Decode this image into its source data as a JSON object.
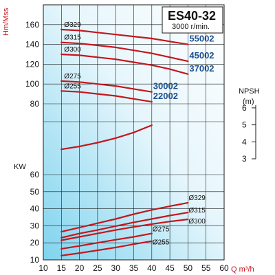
{
  "chart_data": {
    "type": "line",
    "title": "ES40-32",
    "subtitle": "3000 r/min.",
    "xlabel": "Q m³/h",
    "x_ticks": [
      10,
      15,
      20,
      25,
      30,
      35,
      40,
      45,
      50,
      55,
      60
    ],
    "xlim": [
      10,
      60
    ],
    "head": {
      "ylabel": "Hm/Mss",
      "y_ticks": [
        80,
        100,
        120,
        140,
        160
      ],
      "ylim": [
        80,
        168
      ],
      "curves": [
        {
          "diameter": "Ø329",
          "model": "55002",
          "x": [
            15,
            20,
            25,
            30,
            35,
            40,
            45,
            50
          ],
          "y": [
            155,
            154,
            152,
            150,
            148,
            146,
            143,
            140
          ]
        },
        {
          "diameter": "Ø315",
          "model": "45002",
          "x": [
            15,
            20,
            25,
            30,
            35,
            40,
            45,
            50
          ],
          "y": [
            142,
            141,
            139,
            137,
            134,
            131,
            127,
            123
          ]
        },
        {
          "diameter": "Ø300",
          "model": "37002",
          "x": [
            15,
            20,
            25,
            30,
            35,
            40,
            45,
            50
          ],
          "y": [
            130,
            129,
            127,
            125,
            122,
            119,
            115,
            110
          ]
        },
        {
          "diameter": "Ø275",
          "model": "30002",
          "x": [
            15,
            20,
            25,
            30,
            35,
            40
          ],
          "y": [
            103,
            102,
            100,
            98,
            95,
            92
          ]
        },
        {
          "diameter": "Ø255",
          "model": "22002",
          "x": [
            15,
            20,
            25,
            30,
            35,
            40
          ],
          "y": [
            93,
            92,
            90,
            88,
            85,
            82
          ]
        }
      ]
    },
    "npsh": {
      "ylabel": "NPSH",
      "unit": "(m)",
      "y_ticks": [
        3,
        4,
        5,
        6
      ],
      "ylim": [
        3,
        6
      ],
      "curve": {
        "x": [
          15,
          20,
          25,
          30,
          35,
          40
        ],
        "y": [
          3.56,
          3.73,
          3.95,
          4.22,
          4.55,
          4.98
        ]
      }
    },
    "power": {
      "ylabel": "KW",
      "y_ticks": [
        10,
        20,
        30,
        40,
        50,
        60
      ],
      "ylim": [
        10,
        60
      ],
      "curves": [
        {
          "diameter": "Ø329",
          "x": [
            15,
            20,
            25,
            30,
            35,
            40,
            45,
            50
          ],
          "y": [
            26.5,
            29,
            31.5,
            34,
            36.8,
            39.3,
            41.5,
            43.5
          ]
        },
        {
          "diameter": "Ø315",
          "x": [
            15,
            20,
            25,
            30,
            35,
            40,
            45,
            50
          ],
          "y": [
            23,
            25.5,
            27.5,
            29.8,
            32,
            34,
            36,
            37.8
          ]
        },
        {
          "diameter": "Ø300",
          "x": [
            15,
            20,
            25,
            30,
            35,
            40,
            45,
            50
          ],
          "y": [
            21.5,
            23.5,
            25.5,
            27.5,
            29.3,
            31,
            32.5,
            33.8
          ]
        },
        {
          "diameter": "Ø275",
          "x": [
            15,
            20,
            25,
            30,
            35,
            40
          ],
          "y": [
            16.5,
            18.2,
            20,
            21.8,
            23.5,
            25.5
          ]
        },
        {
          "diameter": "Ø255",
          "x": [
            15,
            20,
            25,
            30,
            35,
            40
          ],
          "y": [
            12.5,
            14,
            15.6,
            17.3,
            19.2,
            21
          ]
        }
      ]
    },
    "colors": {
      "curve": "#c4161c",
      "grid": "#1a1a1a",
      "bg_light": "#ffffff",
      "bg_dark": "#7fd3ee",
      "model_label": "#1d4f91"
    }
  }
}
